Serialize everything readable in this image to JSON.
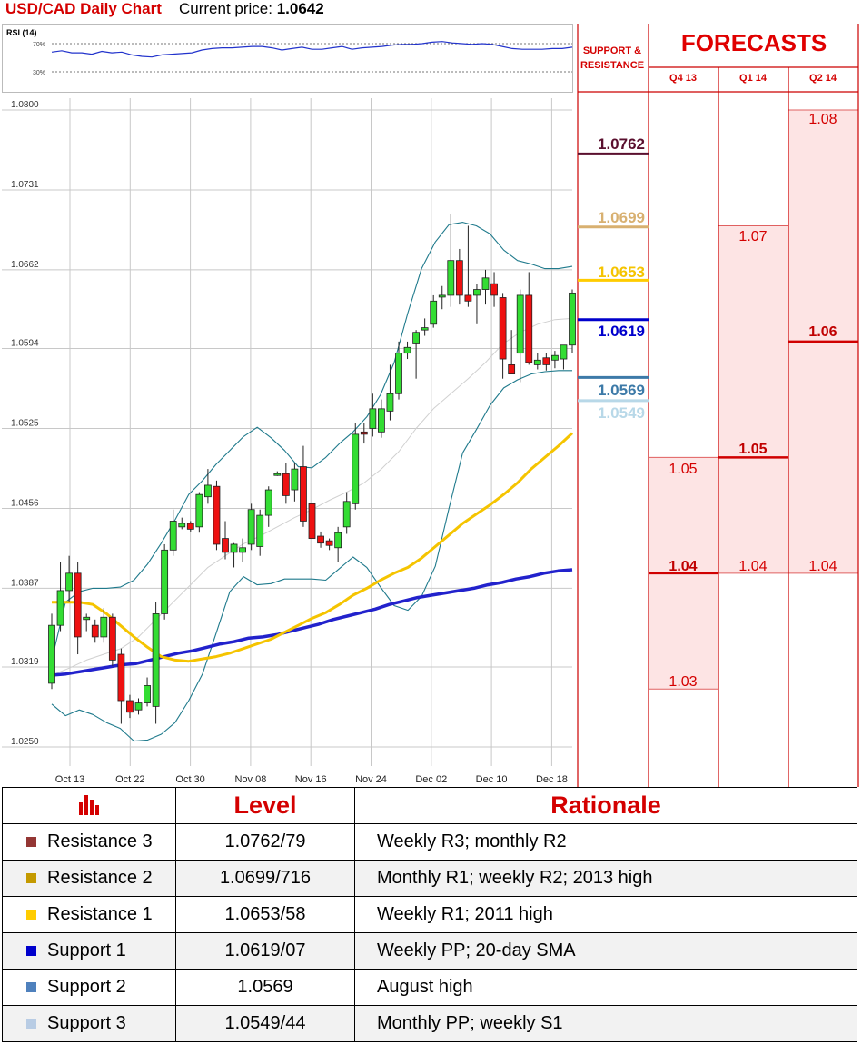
{
  "header": {
    "title": "USD/CAD Daily Chart",
    "current_price_label": "Current price:",
    "current_price": "1.0642"
  },
  "rsi": {
    "label": "RSI (14)",
    "level_high": "70%",
    "level_low": "30%",
    "values": [
      58,
      60,
      57,
      57,
      55,
      59,
      57,
      58,
      54,
      52,
      51,
      54,
      55,
      56,
      57,
      61,
      63,
      64,
      64,
      65,
      66,
      66,
      64,
      61,
      63,
      65,
      62,
      62,
      64,
      66,
      62,
      64,
      65,
      66,
      68,
      69,
      69,
      70,
      72,
      73,
      71,
      70,
      69,
      70,
      69,
      66,
      63,
      62,
      62,
      62,
      63,
      63,
      65
    ]
  },
  "chart_data": {
    "type": "candlestick",
    "title": "USD/CAD Daily Chart",
    "y_ticks": [
      "1.0800",
      "1.0731",
      "1.0662",
      "1.0594",
      "1.0525",
      "1.0456",
      "1.0387",
      "1.0319",
      "1.0250"
    ],
    "ylim": [
      1.025,
      1.08
    ],
    "x_ticks": [
      "Oct 13",
      "Oct 22",
      "Oct 30",
      "Nov 08",
      "Nov 16",
      "Nov 24",
      "Dec 02",
      "Dec 10",
      "Dec 18"
    ],
    "grid": true,
    "candles": [
      [
        1.0305,
        1.0365,
        1.03,
        1.0355
      ],
      [
        1.0355,
        1.041,
        1.035,
        1.0385
      ],
      [
        1.0385,
        1.0415,
        1.0375,
        1.04
      ],
      [
        1.04,
        1.041,
        1.033,
        1.0345
      ],
      [
        1.036,
        1.0365,
        1.035,
        1.0362
      ],
      [
        1.0355,
        1.036,
        1.034,
        1.0345
      ],
      [
        1.0345,
        1.037,
        1.034,
        1.0362
      ],
      [
        1.0362,
        1.0365,
        1.032,
        1.0325
      ],
      [
        1.033,
        1.0335,
        1.027,
        1.029
      ],
      [
        1.029,
        1.0295,
        1.0275,
        1.028
      ],
      [
        1.0282,
        1.0292,
        1.0278,
        1.0288
      ],
      [
        1.0288,
        1.031,
        1.0285,
        1.0303
      ],
      [
        1.0285,
        1.0375,
        1.027,
        1.0365
      ],
      [
        1.0365,
        1.0425,
        1.036,
        1.042
      ],
      [
        1.042,
        1.0455,
        1.0415,
        1.0445
      ],
      [
        1.044,
        1.0448,
        1.0438,
        1.0443
      ],
      [
        1.0443,
        1.0445,
        1.0436,
        1.0438
      ],
      [
        1.044,
        1.047,
        1.0435,
        1.0468
      ],
      [
        1.0466,
        1.049,
        1.046,
        1.0476
      ],
      [
        1.0475,
        1.048,
        1.042,
        1.0425
      ],
      [
        1.043,
        1.0445,
        1.0412,
        1.0418
      ],
      [
        1.0418,
        1.0426,
        1.0405,
        1.0425
      ],
      [
        1.0418,
        1.043,
        1.041,
        1.0422
      ],
      [
        1.0425,
        1.046,
        1.042,
        1.0455
      ],
      [
        1.0423,
        1.0455,
        1.0415,
        1.045
      ],
      [
        1.045,
        1.0475,
        1.044,
        1.0472
      ],
      [
        1.0485,
        1.0488,
        1.0484,
        1.0486
      ],
      [
        1.0486,
        1.0495,
        1.046,
        1.0467
      ],
      [
        1.0472,
        1.0495,
        1.0462,
        1.049
      ],
      [
        1.0492,
        1.051,
        1.044,
        1.0445
      ],
      [
        1.046,
        1.048,
        1.043,
        1.043
      ],
      [
        1.0432,
        1.0436,
        1.0422,
        1.0426
      ],
      [
        1.0428,
        1.043,
        1.042,
        1.0424
      ],
      [
        1.0422,
        1.044,
        1.041,
        1.0435
      ],
      [
        1.044,
        1.047,
        1.0434,
        1.0462
      ],
      [
        1.046,
        1.053,
        1.0455,
        1.052
      ],
      [
        1.0522,
        1.053,
        1.0512,
        1.052
      ],
      [
        1.0525,
        1.0555,
        1.0518,
        1.0542
      ],
      [
        1.0522,
        1.055,
        1.0517,
        1.0542
      ],
      [
        1.054,
        1.058,
        1.0532,
        1.0555
      ],
      [
        1.0555,
        1.06,
        1.055,
        1.059
      ],
      [
        1.059,
        1.06,
        1.0585,
        1.0595
      ],
      [
        1.0598,
        1.061,
        1.0568,
        1.0608
      ],
      [
        1.061,
        1.062,
        1.0605,
        1.0612
      ],
      [
        1.0615,
        1.064,
        1.0612,
        1.0635
      ],
      [
        1.064,
        1.0648,
        1.0628,
        1.064
      ],
      [
        1.064,
        1.071,
        1.063,
        1.067
      ],
      [
        1.067,
        1.068,
        1.0632,
        1.064
      ],
      [
        1.064,
        1.07,
        1.063,
        1.0635
      ],
      [
        1.064,
        1.065,
        1.0615,
        1.0645
      ],
      [
        1.0645,
        1.0662,
        1.0632,
        1.0655
      ],
      [
        1.065,
        1.066,
        1.063,
        1.064
      ],
      [
        1.0638,
        1.0642,
        1.0568,
        1.0585
      ],
      [
        1.058,
        1.061,
        1.0572,
        1.0572
      ],
      [
        1.059,
        1.0645,
        1.0565,
        1.064
      ],
      [
        1.064,
        1.066,
        1.058,
        1.0582
      ],
      [
        1.058,
        1.059,
        1.0576,
        1.0584
      ],
      [
        1.0586,
        1.059,
        1.0575,
        1.058
      ],
      [
        1.0584,
        1.0592,
        1.0577,
        1.0588
      ],
      [
        1.0585,
        1.0595,
        1.0576,
        1.0597
      ],
      [
        1.0597,
        1.0645,
        1.059,
        1.0642
      ]
    ],
    "sma_fast": [
      1.0375,
      1.0375,
      1.0375,
      1.0373,
      1.0365,
      1.0355,
      1.0345,
      1.0336,
      1.0328,
      1.0325,
      1.0324,
      1.0326,
      1.0328,
      1.0331,
      1.0335,
      1.0339,
      1.0343,
      1.0349,
      1.0355,
      1.0361,
      1.0366,
      1.0373,
      1.0381,
      1.0387,
      1.0394,
      1.04,
      1.0405,
      1.0413,
      1.0423,
      1.0433,
      1.0443,
      1.0451,
      1.0459,
      1.0468,
      1.0478,
      1.049,
      1.05,
      1.051,
      1.0521
    ],
    "sma_slow": [
      1.0312,
      1.0313,
      1.0315,
      1.0317,
      1.0319,
      1.0321,
      1.0322,
      1.0325,
      1.0328,
      1.0331,
      1.0333,
      1.0336,
      1.0339,
      1.0341,
      1.0344,
      1.0345,
      1.0347,
      1.035,
      1.0353,
      1.0356,
      1.036,
      1.0363,
      1.0366,
      1.0369,
      1.0373,
      1.0376,
      1.0379,
      1.0381,
      1.0383,
      1.0385,
      1.0387,
      1.039,
      1.0392,
      1.0395,
      1.0397,
      1.04,
      1.0402,
      1.0403
    ],
    "boll_upper": [
      1.0325,
      1.0375,
      1.0384,
      1.0387,
      1.0387,
      1.0388,
      1.0394,
      1.0408,
      1.0426,
      1.0446,
      1.0468,
      1.048,
      1.0494,
      1.0506,
      1.0518,
      1.0526,
      1.0517,
      1.0506,
      1.0492,
      1.0491,
      1.05,
      1.0512,
      1.0522,
      1.0535,
      1.0554,
      1.0582,
      1.0625,
      1.0663,
      1.0686,
      1.0701,
      1.0703,
      1.07,
      1.0693,
      1.0679,
      1.067,
      1.0667,
      1.0663,
      1.0663,
      1.0665
    ],
    "boll_lower": [
      1.0287,
      1.0277,
      1.0282,
      1.0278,
      1.0271,
      1.0266,
      1.0255,
      1.0256,
      1.0261,
      1.0271,
      1.029,
      1.0313,
      1.0348,
      1.0384,
      1.0397,
      1.039,
      1.0391,
      1.0395,
      1.0395,
      1.0395,
      1.0394,
      1.0404,
      1.0414,
      1.0405,
      1.0388,
      1.0372,
      1.0368,
      1.038,
      1.0406,
      1.0456,
      1.0504,
      1.0524,
      1.0545,
      1.056,
      1.0567,
      1.0572,
      1.0574,
      1.0575,
      1.0575
    ],
    "boll_mid": [
      1.0312,
      1.0318,
      1.0325,
      1.033,
      1.0335,
      1.0345,
      1.036,
      1.0375,
      1.039,
      1.0405,
      1.0415,
      1.0425,
      1.0432,
      1.044,
      1.0448,
      1.0455,
      1.0463,
      1.047,
      1.0478,
      1.049,
      1.0505,
      1.0525,
      1.0542,
      1.0555,
      1.0568,
      1.0582,
      1.0598,
      1.0608,
      1.0615,
      1.0619,
      1.062
    ]
  },
  "support_resistance": {
    "header": "SUPPORT & RESISTANCE",
    "levels": [
      {
        "value": "1.0762",
        "color": "#5a0f2e"
      },
      {
        "value": "1.0699",
        "color": "#d8b070"
      },
      {
        "value": "1.0653",
        "color": "#ffcc00"
      },
      {
        "value": "1.0619",
        "color": "#0000cc"
      },
      {
        "value": "1.0569",
        "color": "#3d7aa8"
      },
      {
        "value": "1.0549",
        "color": "#b8d8e8"
      }
    ]
  },
  "forecasts": {
    "title": "FORECASTS",
    "quarters": [
      "Q4 13",
      "Q1 14",
      "Q2 14"
    ],
    "columns": [
      {
        "high": "1.05",
        "mid": "1.04",
        "low": "1.03"
      },
      {
        "high": "1.07",
        "mid": "1.05",
        "low": "1.04"
      },
      {
        "high": "1.08",
        "mid": "1.06",
        "low": "1.04"
      }
    ]
  },
  "levels_table": {
    "col_level": "Level",
    "col_rationale": "Rationale",
    "rows": [
      {
        "name": "Resistance 3",
        "level": "1.0762/79",
        "rationale": "Weekly R3; monthly R2",
        "color": "#943634"
      },
      {
        "name": "Resistance 2",
        "level": "1.0699/716",
        "rationale": "Monthly R1; weekly R2; 2013 high",
        "color": "#c49a00"
      },
      {
        "name": "Resistance 1",
        "level": "1.0653/58",
        "rationale": "Weekly R1; 2011 high",
        "color": "#ffcc00"
      },
      {
        "name": "Support 1",
        "level": "1.0619/07",
        "rationale": "Weekly PP; 20-day SMA",
        "color": "#0000cc"
      },
      {
        "name": "Support 2",
        "level": "1.0569",
        "rationale": "August high",
        "color": "#4f81bd"
      },
      {
        "name": "Support 3",
        "level": "1.0549/44",
        "rationale": "Monthly PP; weekly S1",
        "color": "#b8cce4"
      }
    ]
  }
}
